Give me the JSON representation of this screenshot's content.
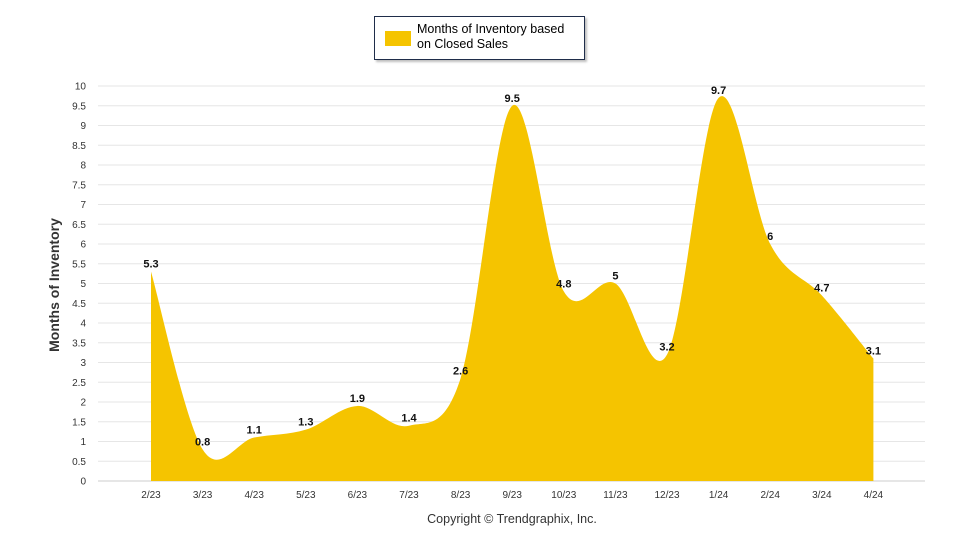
{
  "chart_data": {
    "type": "area",
    "categories": [
      "2/23",
      "3/23",
      "4/23",
      "5/23",
      "6/23",
      "7/23",
      "8/23",
      "9/23",
      "10/23",
      "11/23",
      "12/23",
      "1/24",
      "2/24",
      "3/24",
      "4/24"
    ],
    "series": [
      {
        "name": "Months of Inventory based on Closed Sales",
        "values": [
          5.3,
          0.8,
          1.1,
          1.3,
          1.9,
          1.4,
          2.6,
          9.5,
          4.8,
          5,
          3.2,
          9.7,
          6,
          4.7,
          3.1
        ],
        "labels": [
          "5.3",
          "0.8",
          "1.1",
          "1.3",
          "1.9",
          "1.4",
          "2.6",
          "9.5",
          "4.8",
          "5",
          "3.2",
          "9.7",
          "6",
          "4.7",
          "3.1"
        ],
        "color": "#f5c400"
      }
    ],
    "ylabel": "Months of Inventory",
    "ylim": [
      0,
      10
    ],
    "yticks": [
      "0",
      "0.5",
      "1",
      "1.5",
      "2",
      "2.5",
      "3",
      "3.5",
      "4",
      "4.5",
      "5",
      "5.5",
      "6",
      "6.5",
      "7",
      "7.5",
      "8",
      "8.5",
      "9",
      "9.5",
      "10"
    ],
    "grid": true,
    "legend_placement": "top-center"
  },
  "legend": {
    "label": "Months of Inventory based on Closed Sales"
  },
  "footer": {
    "copyright": "Copyright © Trendgraphix, Inc."
  },
  "colors": {
    "area": "#f5c400",
    "grid": "#e6e6e6",
    "axis_text": "#333333"
  }
}
